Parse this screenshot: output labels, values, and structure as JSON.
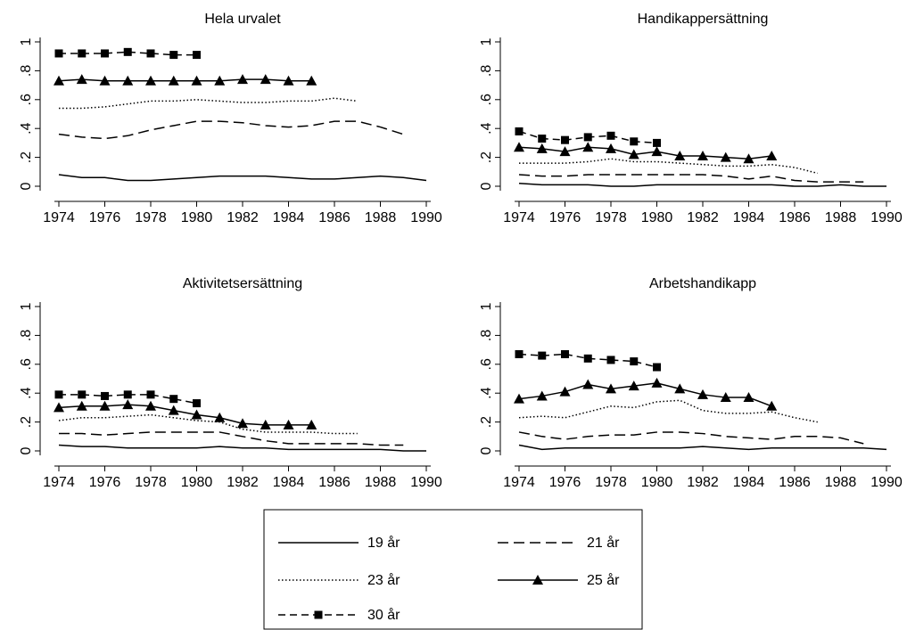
{
  "legend": [
    "19 år",
    "21 år",
    "23 år",
    "25 år",
    "30 år"
  ],
  "chart_data": [
    {
      "type": "line",
      "title": "Hela urvalet",
      "x": [
        1974,
        1975,
        1976,
        1977,
        1978,
        1979,
        1980,
        1981,
        1982,
        1983,
        1984,
        1985,
        1986,
        1987,
        1988,
        1989,
        1990
      ],
      "series": [
        {
          "values": [
            0.08,
            0.06,
            0.06,
            0.04,
            0.04,
            0.05,
            0.06,
            0.07,
            0.07,
            0.07,
            0.06,
            0.05,
            0.05,
            0.06,
            0.07,
            0.06,
            0.04
          ]
        },
        {
          "values": [
            0.36,
            0.34,
            0.33,
            0.35,
            0.39,
            0.42,
            0.45,
            0.45,
            0.44,
            0.42,
            0.41,
            0.42,
            0.45,
            0.45,
            0.41,
            0.36,
            null
          ]
        },
        {
          "values": [
            0.54,
            0.54,
            0.55,
            0.57,
            0.59,
            0.59,
            0.6,
            0.59,
            0.58,
            0.58,
            0.59,
            0.59,
            0.61,
            0.59,
            null,
            null,
            null
          ]
        },
        {
          "values": [
            0.73,
            0.74,
            0.73,
            0.73,
            0.73,
            0.73,
            0.73,
            0.73,
            0.74,
            0.74,
            0.73,
            0.73,
            null,
            null,
            null,
            null,
            null
          ]
        },
        {
          "values": [
            0.92,
            0.92,
            0.92,
            0.93,
            0.92,
            0.91,
            0.91,
            null,
            null,
            null,
            null,
            null,
            null,
            null,
            null,
            null,
            null
          ]
        }
      ],
      "xlim": [
        1974,
        1990
      ],
      "ylim": [
        0,
        1
      ],
      "xticks": [
        1974,
        1976,
        1978,
        1980,
        1982,
        1984,
        1986,
        1988,
        1990
      ],
      "yticks": [
        0,
        {
          "value": 0.2,
          "label": ".2"
        },
        {
          "value": 0.4,
          "label": ".4"
        },
        {
          "value": 0.6,
          "label": ".6"
        },
        {
          "value": 0.8,
          "label": ".8"
        },
        1
      ]
    },
    {
      "type": "line",
      "title": "Handikappersättning",
      "x": [
        1974,
        1975,
        1976,
        1977,
        1978,
        1979,
        1980,
        1981,
        1982,
        1983,
        1984,
        1985,
        1986,
        1987,
        1988,
        1989,
        1990
      ],
      "series": [
        {
          "values": [
            0.02,
            0.01,
            0.01,
            0.01,
            0,
            0,
            0.01,
            0.01,
            0.01,
            0.01,
            0.01,
            0.01,
            0,
            0,
            0.01,
            0,
            0
          ]
        },
        {
          "values": [
            0.08,
            0.07,
            0.07,
            0.08,
            0.08,
            0.08,
            0.08,
            0.08,
            0.08,
            0.07,
            0.05,
            0.07,
            0.04,
            0.03,
            0.03,
            0.03,
            null
          ]
        },
        {
          "values": [
            0.16,
            0.16,
            0.16,
            0.17,
            0.19,
            0.17,
            0.17,
            0.16,
            0.15,
            0.14,
            0.14,
            0.15,
            0.13,
            0.09,
            null,
            null,
            null
          ]
        },
        {
          "values": [
            0.27,
            0.26,
            0.24,
            0.27,
            0.26,
            0.22,
            0.24,
            0.21,
            0.21,
            0.2,
            0.19,
            0.21,
            null,
            null,
            null,
            null,
            null
          ]
        },
        {
          "values": [
            0.38,
            0.33,
            0.32,
            0.34,
            0.35,
            0.31,
            0.3,
            null,
            null,
            null,
            null,
            null,
            null,
            null,
            null,
            null,
            null
          ]
        }
      ],
      "xlim": [
        1974,
        1990
      ],
      "ylim": [
        0,
        1
      ],
      "xticks": [
        1974,
        1976,
        1978,
        1980,
        1982,
        1984,
        1986,
        1988,
        1990
      ],
      "yticks": [
        0,
        {
          "value": 0.2,
          "label": ".2"
        },
        {
          "value": 0.4,
          "label": ".4"
        },
        {
          "value": 0.6,
          "label": ".6"
        },
        {
          "value": 0.8,
          "label": ".8"
        },
        1
      ]
    },
    {
      "type": "line",
      "title": "Aktivitetsersättning",
      "x": [
        1974,
        1975,
        1976,
        1977,
        1978,
        1979,
        1980,
        1981,
        1982,
        1983,
        1984,
        1985,
        1986,
        1987,
        1988,
        1989,
        1990
      ],
      "series": [
        {
          "values": [
            0.04,
            0.03,
            0.03,
            0.02,
            0.02,
            0.02,
            0.02,
            0.03,
            0.02,
            0.02,
            0.01,
            0.01,
            0.01,
            0.01,
            0.01,
            0,
            0
          ]
        },
        {
          "values": [
            0.12,
            0.12,
            0.11,
            0.12,
            0.13,
            0.13,
            0.13,
            0.13,
            0.1,
            0.07,
            0.05,
            0.05,
            0.05,
            0.05,
            0.04,
            0.04,
            null
          ]
        },
        {
          "values": [
            0.21,
            0.23,
            0.23,
            0.24,
            0.25,
            0.23,
            0.21,
            0.2,
            0.15,
            0.13,
            0.13,
            0.13,
            0.12,
            0.12,
            null,
            null,
            null
          ]
        },
        {
          "values": [
            0.3,
            0.31,
            0.31,
            0.32,
            0.31,
            0.28,
            0.25,
            0.23,
            0.19,
            0.18,
            0.18,
            0.18,
            null,
            null,
            null,
            null,
            null
          ]
        },
        {
          "values": [
            0.39,
            0.39,
            0.38,
            0.39,
            0.39,
            0.36,
            0.33,
            null,
            null,
            null,
            null,
            null,
            null,
            null,
            null,
            null,
            null
          ]
        }
      ],
      "xlim": [
        1974,
        1990
      ],
      "ylim": [
        0,
        1
      ],
      "xticks": [
        1974,
        1976,
        1978,
        1980,
        1982,
        1984,
        1986,
        1988,
        1990
      ],
      "yticks": [
        0,
        {
          "value": 0.2,
          "label": ".2"
        },
        {
          "value": 0.4,
          "label": ".4"
        },
        {
          "value": 0.6,
          "label": ".6"
        },
        {
          "value": 0.8,
          "label": ".8"
        },
        1
      ]
    },
    {
      "type": "line",
      "title": "Arbetshandikapp",
      "x": [
        1974,
        1975,
        1976,
        1977,
        1978,
        1979,
        1980,
        1981,
        1982,
        1983,
        1984,
        1985,
        1986,
        1987,
        1988,
        1989,
        1990
      ],
      "series": [
        {
          "values": [
            0.04,
            0.01,
            0.02,
            0.02,
            0.02,
            0.02,
            0.02,
            0.02,
            0.03,
            0.02,
            0.01,
            0.02,
            0.02,
            0.02,
            0.02,
            0.02,
            0.01
          ]
        },
        {
          "values": [
            0.13,
            0.1,
            0.08,
            0.1,
            0.11,
            0.11,
            0.13,
            0.13,
            0.12,
            0.1,
            0.09,
            0.08,
            0.1,
            0.1,
            0.09,
            0.05,
            null
          ]
        },
        {
          "values": [
            0.23,
            0.24,
            0.23,
            0.27,
            0.31,
            0.3,
            0.34,
            0.35,
            0.28,
            0.26,
            0.26,
            0.27,
            0.23,
            0.2,
            null,
            null,
            null
          ]
        },
        {
          "values": [
            0.36,
            0.38,
            0.41,
            0.46,
            0.43,
            0.45,
            0.47,
            0.43,
            0.39,
            0.37,
            0.37,
            0.31,
            null,
            null,
            null,
            null,
            null
          ]
        },
        {
          "values": [
            0.67,
            0.66,
            0.67,
            0.64,
            0.63,
            0.62,
            0.58,
            null,
            null,
            null,
            null,
            null,
            null,
            null,
            null,
            null,
            null
          ]
        }
      ],
      "xlim": [
        1974,
        1990
      ],
      "ylim": [
        0,
        1
      ],
      "xticks": [
        1974,
        1976,
        1978,
        1980,
        1982,
        1984,
        1986,
        1988,
        1990
      ],
      "yticks": [
        0,
        {
          "value": 0.2,
          "label": ".2"
        },
        {
          "value": 0.4,
          "label": ".4"
        },
        {
          "value": 0.6,
          "label": ".6"
        },
        {
          "value": 0.8,
          "label": ".8"
        },
        1
      ]
    }
  ]
}
